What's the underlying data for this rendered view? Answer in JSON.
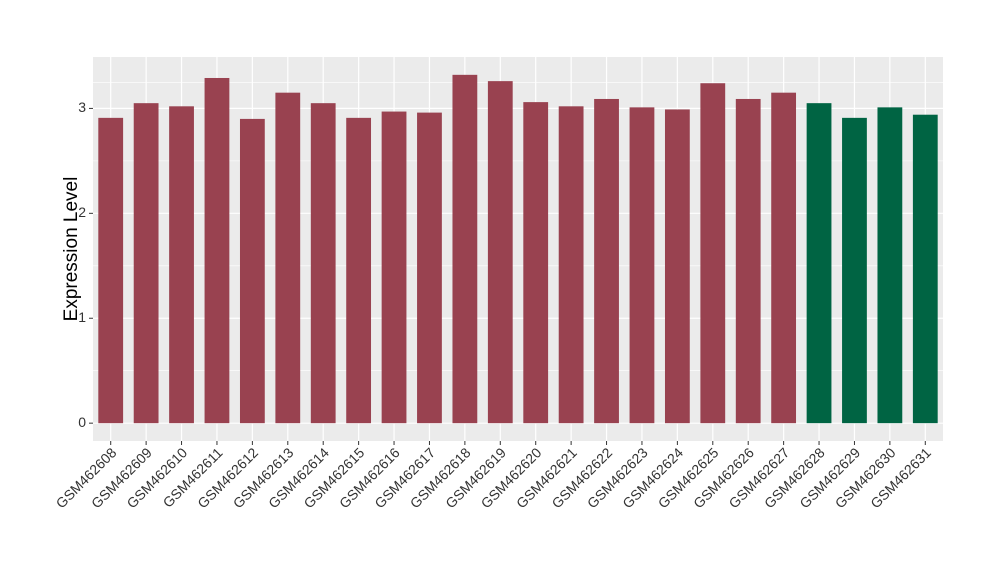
{
  "chart_data": {
    "type": "bar",
    "y_label": "Expression Level",
    "categories": [
      "GSM462608",
      "GSM462609",
      "GSM462610",
      "GSM462611",
      "GSM462612",
      "GSM462613",
      "GSM462614",
      "GSM462615",
      "GSM462616",
      "GSM462617",
      "GSM462618",
      "GSM462619",
      "GSM462620",
      "GSM462621",
      "GSM462622",
      "GSM462623",
      "GSM462624",
      "GSM462625",
      "GSM462626",
      "GSM462627",
      "GSM462628",
      "GSM462629",
      "GSM462630",
      "GSM462631"
    ],
    "values": [
      2.91,
      3.05,
      3.02,
      3.29,
      2.9,
      3.15,
      3.05,
      2.91,
      2.97,
      2.96,
      3.32,
      3.26,
      3.06,
      3.02,
      3.09,
      3.01,
      2.99,
      3.24,
      3.09,
      3.15,
      3.05,
      2.91,
      3.01,
      2.94
    ],
    "colors": [
      "#994250",
      "#994250",
      "#994250",
      "#994250",
      "#994250",
      "#994250",
      "#994250",
      "#994250",
      "#994250",
      "#994250",
      "#994250",
      "#994250",
      "#994250",
      "#994250",
      "#994250",
      "#994250",
      "#994250",
      "#994250",
      "#994250",
      "#994250",
      "#006443",
      "#006443",
      "#006443",
      "#006443"
    ],
    "ylim": [
      -0.17,
      3.49
    ],
    "yticks": [
      0,
      1,
      2,
      3
    ],
    "grid": true
  }
}
